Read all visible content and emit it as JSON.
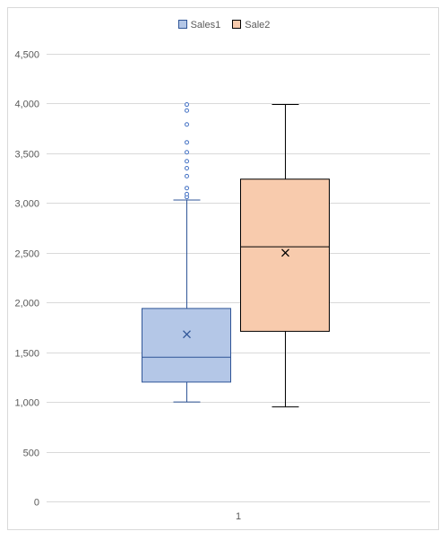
{
  "chart_data": {
    "type": "box",
    "title": "",
    "xlabel": "",
    "ylabel": "",
    "categories": [
      "1"
    ],
    "ylim": [
      0,
      4500
    ],
    "yticks": [
      0,
      500,
      1000,
      1500,
      2000,
      2500,
      3000,
      3500,
      4000,
      4500
    ],
    "ytick_labels": [
      "0",
      "500",
      "1,000",
      "1,500",
      "2,000",
      "2,500",
      "3,000",
      "3,500",
      "4,000",
      "4,500"
    ],
    "grid": true,
    "legend_position": "top",
    "series": [
      {
        "name": "Sales1",
        "fill": "#b4c7e7",
        "stroke": "#2f5597",
        "min": 1000,
        "q1": 1200,
        "median": 1450,
        "mean": 1680,
        "q3": 1940,
        "whisker_high": 3030,
        "outliers": [
          3060,
          3090,
          3150,
          3270,
          3350,
          3420,
          3510,
          3610,
          3790,
          3930,
          3990
        ]
      },
      {
        "name": "Sale2",
        "fill": "#f8cbad",
        "stroke": "#000000",
        "min": 950,
        "q1": 1710,
        "median": 2560,
        "mean": 2500,
        "q3": 3240,
        "whisker_high": 3990,
        "outliers": []
      }
    ]
  }
}
